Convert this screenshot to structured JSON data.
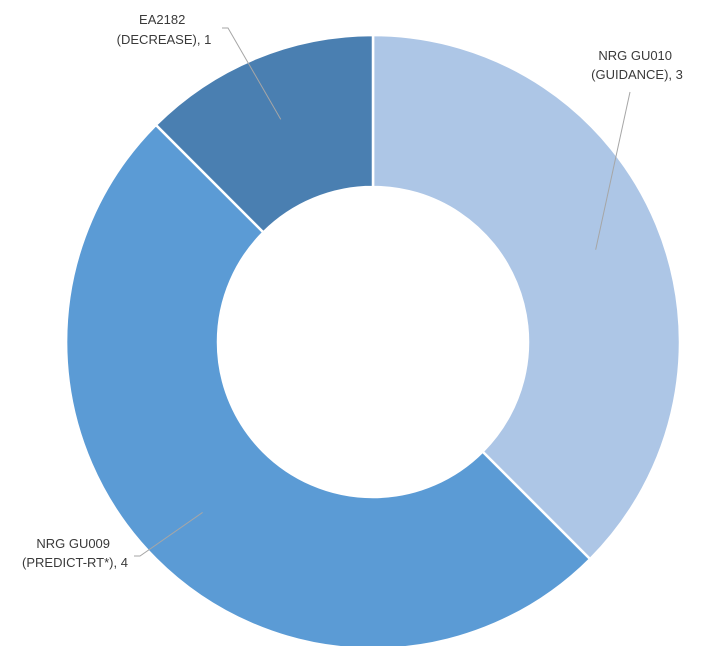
{
  "chart_data": {
    "type": "pie",
    "variant": "donut",
    "slices": [
      {
        "label_line1": "NRG GU010",
        "label_line2": "(GUIDANCE), 3",
        "value": 3,
        "color": "#adc6e6"
      },
      {
        "label_line1": "NRG GU009",
        "label_line2": "(PREDICT-RT*), 4",
        "value": 4,
        "color": "#5b9bd5"
      },
      {
        "label_line1": "EA2182",
        "label_line2": "(DECREASE), 1",
        "value": 1,
        "color": "#4a7fb1"
      }
    ],
    "legend": "none"
  }
}
